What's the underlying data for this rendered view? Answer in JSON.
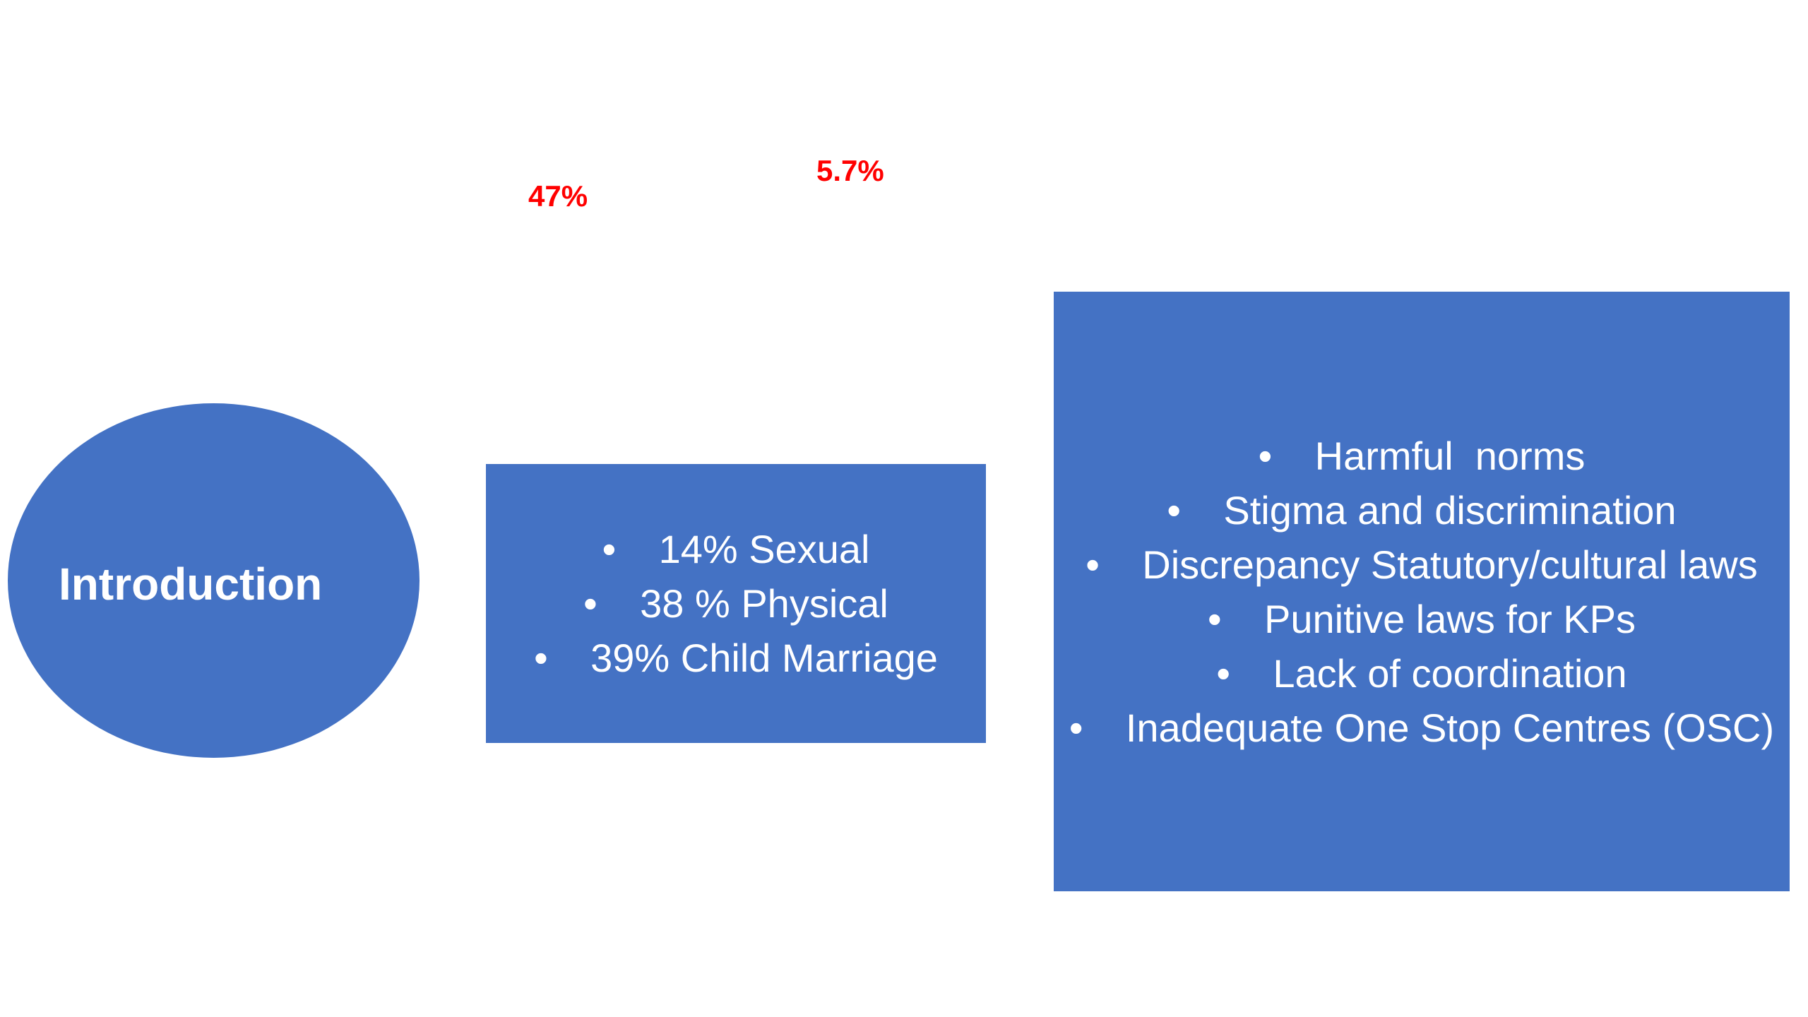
{
  "stats": {
    "first": "47%",
    "second": "5.7%"
  },
  "intro": {
    "label": "Introduction"
  },
  "violence_box": {
    "items": [
      "14% Sexual",
      "38 % Physical",
      "39% Child Marriage"
    ]
  },
  "factors_box": {
    "items": [
      "Harmful  norms",
      "Stigma and discrimination",
      "Discrepancy Statutory/cultural laws",
      "Punitive laws for KPs",
      "Lack of coordination",
      "Inadequate One Stop Centres (OSC)"
    ]
  },
  "bullet_symbol": "•",
  "colors": {
    "shape_fill": "#4472c4",
    "stat_text": "#ff0000",
    "shape_text": "#ffffff"
  }
}
